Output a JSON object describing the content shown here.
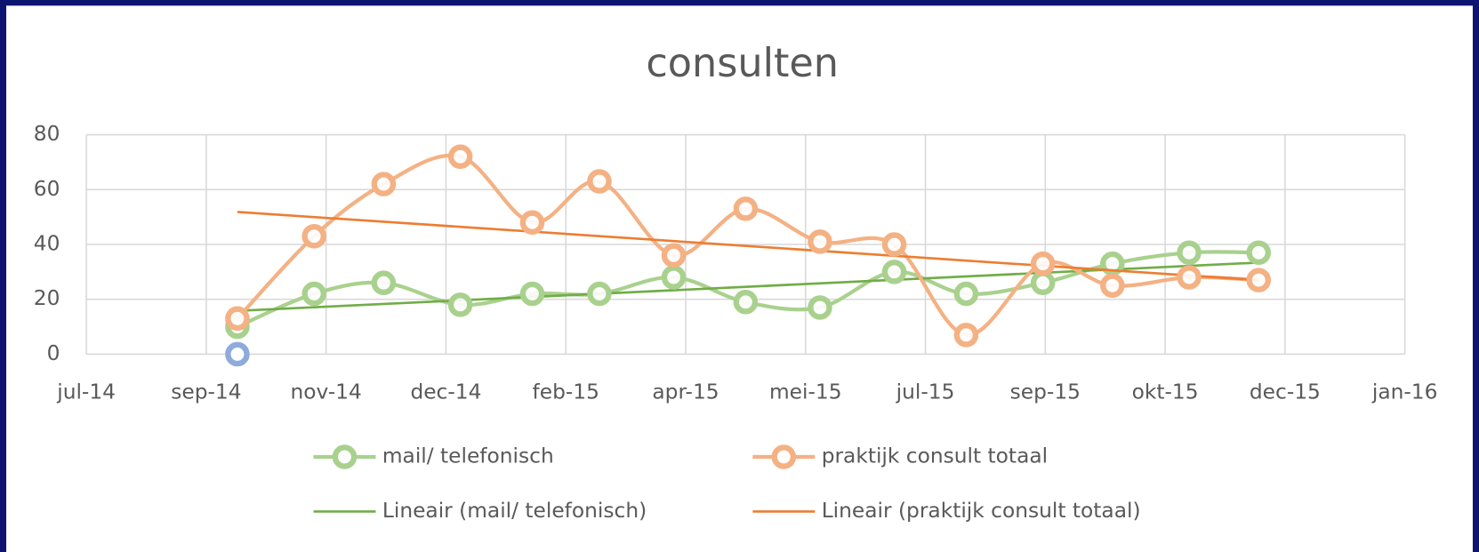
{
  "chart_data": {
    "type": "scatter",
    "title": "consulten",
    "smooth": true,
    "grid": true,
    "legend": "bottom",
    "xlim": [
      41850,
      42400
    ],
    "xticks": [
      {
        "value": 41850,
        "label": "jul-14"
      },
      {
        "value": 41900,
        "label": "sep-14"
      },
      {
        "value": 41950,
        "label": "nov-14"
      },
      {
        "value": 42000,
        "label": "dec-14"
      },
      {
        "value": 42050,
        "label": "feb-15"
      },
      {
        "value": 42100,
        "label": "apr-15"
      },
      {
        "value": 42150,
        "label": "mei-15"
      },
      {
        "value": 42200,
        "label": "jul-15"
      },
      {
        "value": 42250,
        "label": "sep-15"
      },
      {
        "value": 42300,
        "label": "okt-15"
      },
      {
        "value": 42350,
        "label": "dec-15"
      },
      {
        "value": 42400,
        "label": "jan-16"
      }
    ],
    "ylim": [
      0,
      80
    ],
    "yticks": [
      0,
      20,
      40,
      60,
      80
    ],
    "series": [
      {
        "name": "mail/ telefonisch",
        "color": "#a9d18e",
        "line": true,
        "x": [
          41913,
          41945,
          41974,
          42006,
          42036,
          42064,
          42095,
          42125,
          42156,
          42187,
          42217,
          42249,
          42278,
          42310,
          42339
        ],
        "values": [
          10,
          22,
          26,
          18,
          22,
          22,
          28,
          19,
          17,
          30,
          22,
          26,
          33,
          37,
          37
        ]
      },
      {
        "name": "praktijk consult totaal",
        "color": "#f4b183",
        "line": true,
        "x": [
          41913,
          41945,
          41974,
          42006,
          42036,
          42064,
          42095,
          42125,
          42156,
          42187,
          42217,
          42249,
          42278,
          42310,
          42339
        ],
        "values": [
          13,
          43,
          62,
          72,
          48,
          63,
          36,
          53,
          41,
          40,
          7,
          33,
          25,
          28,
          27
        ]
      },
      {
        "color": "#8faadc",
        "line": false,
        "x": [
          41913
        ],
        "values": [
          0
        ]
      }
    ],
    "trendlines": [
      {
        "name": "Lineair (mail/ telefonisch)",
        "color": "#70ad47"
      },
      {
        "name": "Lineair (praktijk consult totaal)",
        "color": "#ed7d31"
      }
    ]
  }
}
